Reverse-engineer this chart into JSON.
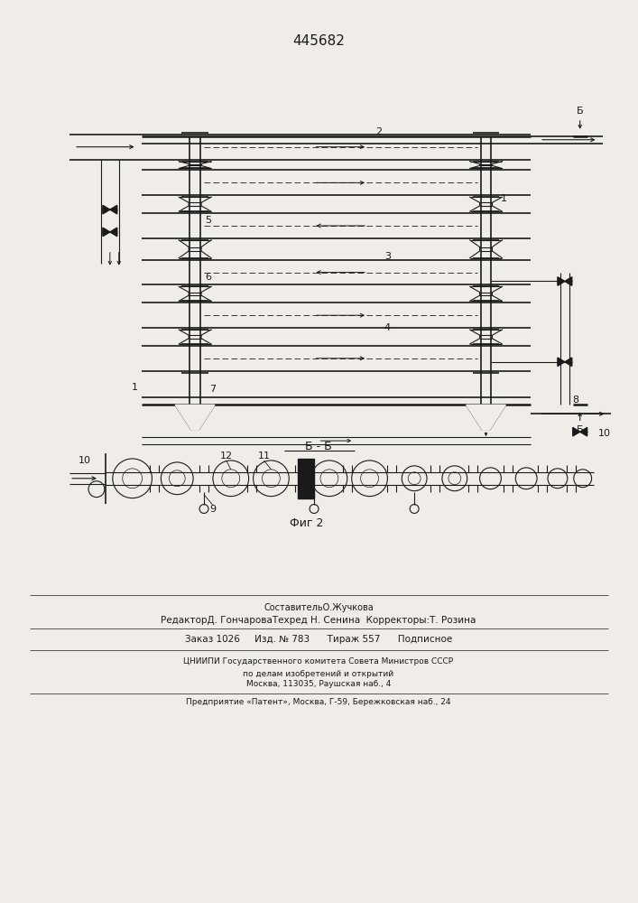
{
  "title": "445682",
  "fig_width": 7.07,
  "fig_height": 10.0,
  "bg_color": "#f0ede8",
  "line_color": "#1a1a1a",
  "footer": {
    "line1": "СоставительО.Жучкова",
    "line2": "РедакторД. ГончароваТехред Н. Сенина  Корректоры:Т. Розина",
    "line3": "Заказ 1026     Изд. № 783      Тираж 557      Подписное",
    "line4": "ЦНИИПИ Государственного комитета Совета Министров СССР",
    "line5": "по делам изобретений и открытий",
    "line6": "Москва, 113035, Раушская наб., 4",
    "line7": "Предприятие «Патент», Москва, Г-59, Бережковская наб., 24"
  }
}
